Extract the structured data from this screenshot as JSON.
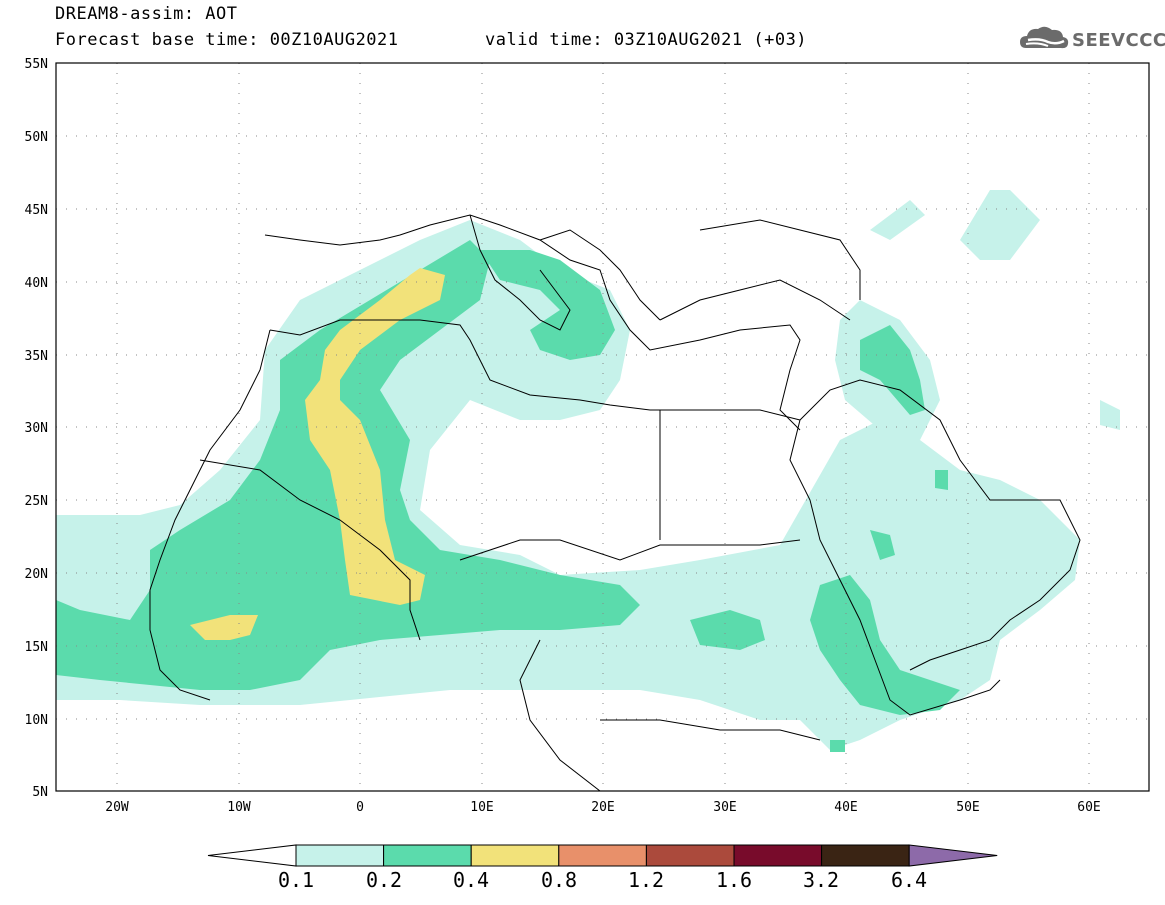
{
  "header": {
    "title": "DREAM8-assim: AOT",
    "base_time": "Forecast base time: 00Z10AUG2021",
    "valid_time": "valid time: 03Z10AUG2021 (+03)",
    "logo_text": "SEEVCCC"
  },
  "map": {
    "region": "North Africa, Mediterranean, Middle East",
    "lat_labels": [
      "55N",
      "50N",
      "45N",
      "40N",
      "35N",
      "30N",
      "25N",
      "20N",
      "15N",
      "10N",
      "5N"
    ],
    "lon_labels": [
      "20W",
      "10W",
      "0",
      "10E",
      "20E",
      "30E",
      "40E",
      "50E",
      "60E"
    ],
    "lon_range": [
      -25,
      65
    ],
    "lat_range": [
      5,
      55
    ],
    "grid": "dotted",
    "variable": "AOT"
  },
  "legend": {
    "levels": [
      "0.1",
      "0.2",
      "0.4",
      "0.8",
      "1.2",
      "1.6",
      "3.2",
      "6.4"
    ],
    "colors": [
      "#ffffff",
      "#c6f2ea",
      "#5bdbac",
      "#f2e27a",
      "#e8906a",
      "#ab4a3c",
      "#780b2b",
      "#3a2414",
      "#8d6aa9"
    ]
  }
}
